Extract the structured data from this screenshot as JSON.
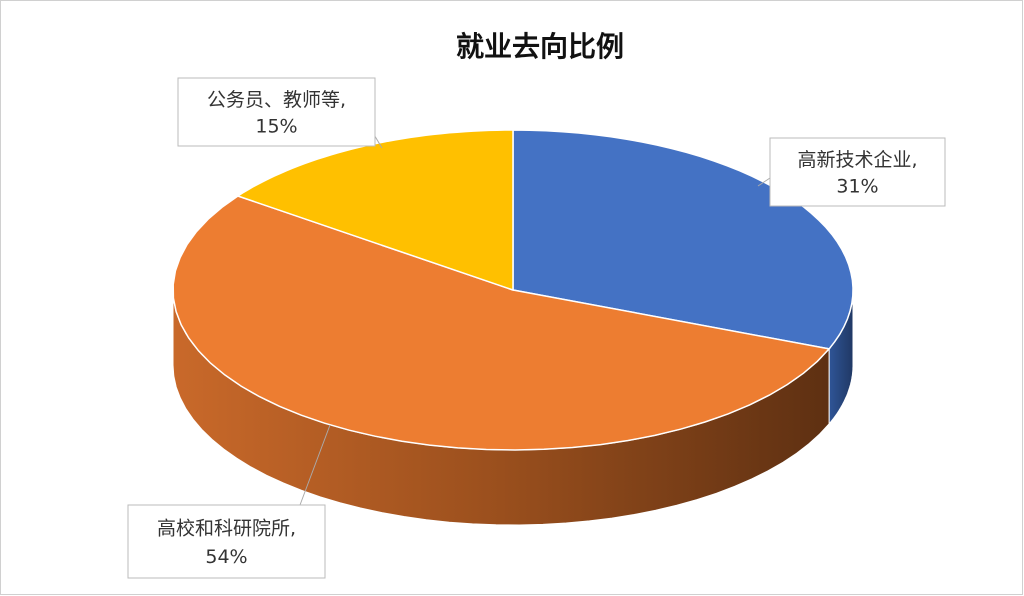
{
  "chart_data": {
    "type": "pie3d",
    "title": "就业去向比例",
    "categories": [
      "高新技术企业",
      "高校和科研院所",
      "公务员、教师等"
    ],
    "values": [
      31,
      54,
      15
    ],
    "value_labels": [
      "31%",
      "54%",
      "15%"
    ],
    "label_separator": ",",
    "colors": [
      "#4472c4",
      "#ed7d31",
      "#ffc000"
    ]
  }
}
